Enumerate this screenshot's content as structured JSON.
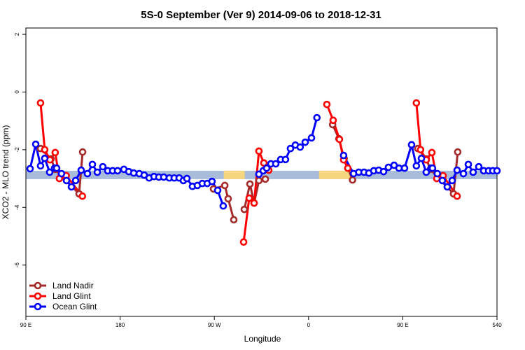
{
  "chart_data": {
    "type": "line",
    "title": "5S-0 September (Ver 9)   2014-09-06 to 2018-12-31",
    "x_label": "Longitude",
    "y_label": "XCO2 - MLO trend (ppm)",
    "xlim": [
      90,
      540
    ],
    "ylim": [
      -7.78,
      2.22
    ],
    "xticks": [
      {
        "value": 90,
        "label": "90 E"
      },
      180,
      {
        "value": 270,
        "label": "90 W"
      },
      {
        "value": 360,
        "label": "0"
      },
      {
        "value": 450,
        "label": "90 E"
      },
      540
    ],
    "yticks": [
      2,
      0,
      -2,
      -4,
      -6
    ],
    "legend": "bottom-left",
    "band": {
      "ymin": -3.02,
      "ymax": -2.73,
      "color": "#a9bcd9",
      "land_color": "#f6d67f",
      "land_spans": [
        [
          279,
          299
        ],
        [
          370,
          400
        ]
      ]
    },
    "series": [
      {
        "name": "Land Nadir",
        "color": "#a52a2a",
        "x": [
          104,
          114,
          118,
          140.8,
          144.2,
          260,
          269.2,
          280,
          283.2,
          288.6,
          293,
          298.6,
          304,
          308,
          312.6,
          318.7,
          350,
          383,
          389,
          394,
          402,
          430,
          464.4,
          472.4,
          476.4,
          498.5,
          502.5
        ],
        "values": [
          -1.96,
          -2.32,
          -2.68,
          -3.53,
          -2.08,
          null,
          -3.36,
          -3.24,
          -3.7,
          -4.43,
          null,
          -4.07,
          -3.19,
          -3.85,
          -3.07,
          -3.02,
          null,
          -1.13,
          -1.62,
          -2.3,
          -3.05,
          null,
          -1.96,
          -2.32,
          -2.68,
          -3.53,
          -2.08
        ]
      },
      {
        "name": "Land Glint",
        "color": "#ff0000",
        "x": [
          104,
          108,
          113,
          118,
          122,
          128.5,
          144,
          250,
          298,
          303.3,
          308,
          312.6,
          317.3,
          322,
          350,
          377.5,
          383.5,
          389.5,
          393.5,
          397.5,
          430,
          463,
          467,
          472.4,
          477.8,
          482.5,
          488.5,
          501.9
        ],
        "values": [
          -0.38,
          -2.0,
          -2.35,
          -2.1,
          -3.0,
          -2.9,
          -3.61,
          null,
          -5.2,
          -3.68,
          -3.85,
          -2.05,
          -2.46,
          -2.71,
          null,
          -0.43,
          -0.98,
          -1.64,
          -2.35,
          -2.64,
          null,
          -0.38,
          -2.0,
          -2.35,
          -2.1,
          -3.0,
          -2.9,
          -3.61
        ]
      },
      {
        "name": "Ocean Glint",
        "color": "#0000ff",
        "x": [
          94,
          99.4,
          104,
          108,
          112.7,
          117.4,
          119.4,
          124,
          128.8,
          133.5,
          137.5,
          142.8,
          148.8,
          153.5,
          158.2,
          163.5,
          168.2,
          172.9,
          177.6,
          183.6,
          188.3,
          193,
          198.3,
          203,
          207.7,
          212.4,
          217,
          221.7,
          227,
          231.7,
          236.4,
          240.4,
          243.8,
          249.1,
          253.8,
          258.5,
          263.2,
          267.8,
          273.2,
          278.5,
          295,
          312.6,
          316.7,
          320,
          324,
          328.7,
          333.4,
          338,
          342.7,
          347.4,
          352,
          356.8,
          362.8,
          368,
          380,
          393.5,
          403,
          408,
          413,
          417.6,
          422.3,
          427,
          431.7,
          436.3,
          441.7,
          446.4,
          451.7,
          458.4,
          463,
          467.8,
          472.4,
          477,
          478.4,
          483,
          487.8,
          492.5,
          497.2,
          501.9,
          507.9,
          512.6,
          517.2,
          522.6,
          527.3,
          532,
          536,
          540
        ],
        "values": [
          -2.66,
          -1.81,
          -2.56,
          -2.3,
          -2.78,
          -2.64,
          -2.64,
          -2.83,
          -3.07,
          -3.29,
          -3.07,
          -2.71,
          -2.83,
          -2.51,
          -2.78,
          -2.59,
          -2.73,
          -2.73,
          -2.73,
          -2.68,
          -2.76,
          -2.81,
          -2.83,
          -2.88,
          -2.98,
          -2.93,
          -2.95,
          -2.95,
          -2.98,
          -2.98,
          -2.98,
          -3.07,
          -3.0,
          -3.27,
          -3.24,
          -3.17,
          -3.17,
          -3.1,
          -3.41,
          -3.95,
          null,
          -2.85,
          -2.73,
          -2.64,
          -2.49,
          -2.49,
          -2.34,
          -2.34,
          -1.96,
          -1.84,
          -1.91,
          -1.74,
          -1.59,
          -0.89,
          null,
          -2.2,
          -2.83,
          -2.78,
          -2.78,
          -2.81,
          -2.73,
          -2.71,
          -2.76,
          -2.61,
          -2.54,
          -2.64,
          -2.64,
          -1.83,
          -2.56,
          -2.3,
          -2.78,
          -2.64,
          -2.64,
          -2.83,
          -3.07,
          -3.29,
          -3.07,
          -2.71,
          -2.83,
          -2.51,
          -2.78,
          -2.59,
          -2.73,
          -2.73,
          -2.73,
          -2.73
        ]
      }
    ]
  }
}
